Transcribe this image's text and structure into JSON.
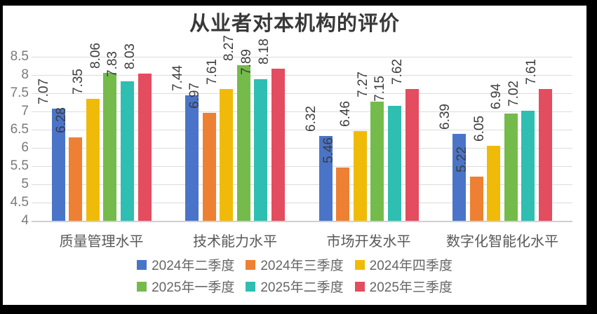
{
  "chart_data": {
    "type": "bar",
    "title": "从业者对本机构的评价",
    "categories": [
      "质量管理水平",
      "技术能力水平",
      "市场开发水平",
      "数字化智能化水平"
    ],
    "series": [
      {
        "name": "2024年二季度",
        "color": "#4A74C8",
        "values": [
          7.07,
          7.44,
          6.32,
          6.39
        ]
      },
      {
        "name": "2024年三季度",
        "color": "#EE8033",
        "values": [
          6.28,
          6.97,
          5.46,
          5.22
        ]
      },
      {
        "name": "2024年四季度",
        "color": "#F0BB08",
        "values": [
          7.35,
          7.61,
          6.46,
          6.05
        ]
      },
      {
        "name": "2025年一季度",
        "color": "#74BB4B",
        "values": [
          8.06,
          8.27,
          7.27,
          6.94
        ]
      },
      {
        "name": "2025年二季度",
        "color": "#2FBEB2",
        "values": [
          7.83,
          7.89,
          7.15,
          7.02
        ]
      },
      {
        "name": "2025年三季度",
        "color": "#E44C5F",
        "values": [
          8.03,
          8.18,
          7.62,
          7.61
        ]
      }
    ],
    "ylim": [
      4,
      8.5
    ],
    "ytick_step": 0.5,
    "ytick_labels": [
      "8.5",
      "8",
      "7.5",
      "7",
      "6.5",
      "6",
      "5.5",
      "5",
      "4.5",
      "4"
    ],
    "grid": true,
    "legend_position": "bottom",
    "legend_rows": [
      [
        0,
        1,
        2
      ],
      [
        3,
        4,
        5
      ]
    ],
    "data_labels": "rotated 90 degrees, two decimals",
    "colors": {
      "title_text": "#383838",
      "axis_text": "#7a7a7a",
      "category_text": "#595959",
      "legend_text": "#666666",
      "data_label_text": "#3d3d3d",
      "gridline": "#dcdcdc",
      "background": "#ffffff",
      "outer_border": "#000000"
    }
  }
}
